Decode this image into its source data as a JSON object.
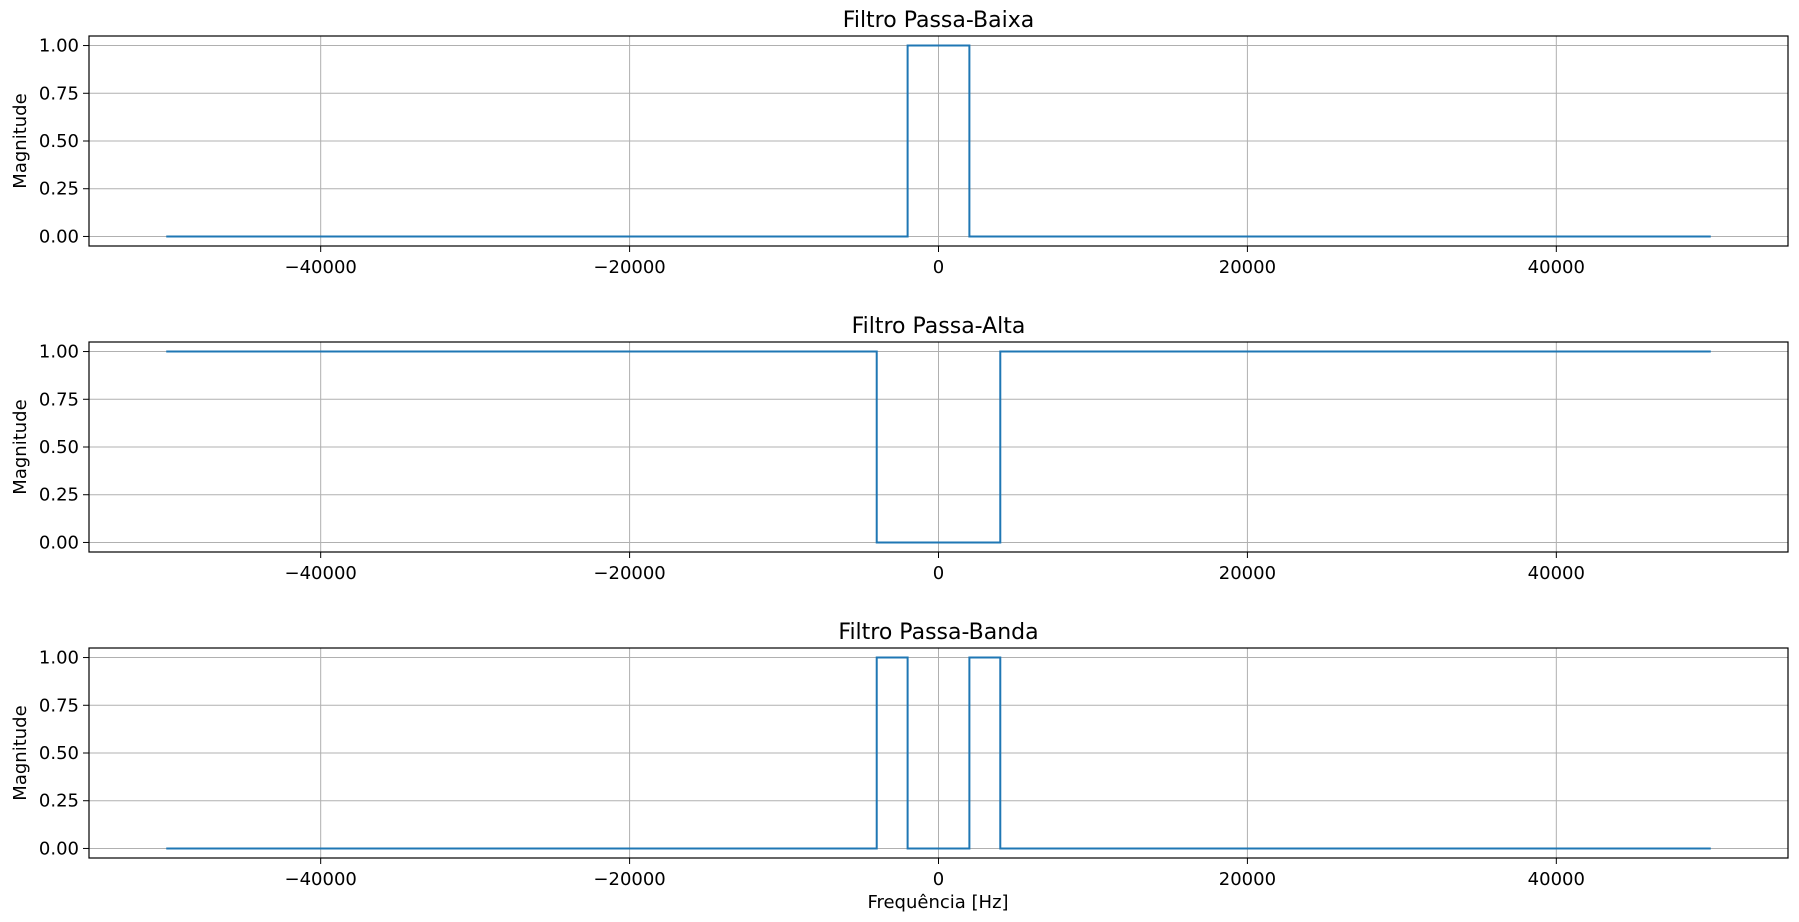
{
  "colors": {
    "line": "#1f77b4",
    "grid": "#b0b0b0",
    "axes": "#000000",
    "background": "#ffffff"
  },
  "xlabel": "Frequência [Hz]",
  "chart_data": [
    {
      "type": "line",
      "title": "Filtro Passa-Baixa",
      "xlabel": "",
      "ylabel": "Magnitude",
      "xlim": [
        -55000,
        55000
      ],
      "ylim": [
        -0.05,
        1.05
      ],
      "grid": true,
      "step": true,
      "xticks": [
        -40000,
        -20000,
        0,
        20000,
        40000
      ],
      "xtick_labels": [
        "−40000",
        "−20000",
        "0",
        "20000",
        "40000"
      ],
      "yticks": [
        0,
        0.25,
        0.5,
        0.75,
        1.0
      ],
      "ytick_labels": [
        "0.00",
        "0.25",
        "0.50",
        "0.75",
        "1.00"
      ],
      "x": [
        -50000,
        -2000,
        -2000,
        2000,
        2000,
        50000
      ],
      "y": [
        0,
        0,
        1,
        1,
        0,
        0
      ]
    },
    {
      "type": "line",
      "title": "Filtro Passa-Alta",
      "xlabel": "",
      "ylabel": "Magnitude",
      "xlim": [
        -55000,
        55000
      ],
      "ylim": [
        -0.05,
        1.05
      ],
      "grid": true,
      "step": true,
      "xticks": [
        -40000,
        -20000,
        0,
        20000,
        40000
      ],
      "xtick_labels": [
        "−40000",
        "−20000",
        "0",
        "20000",
        "40000"
      ],
      "yticks": [
        0,
        0.25,
        0.5,
        0.75,
        1.0
      ],
      "ytick_labels": [
        "0.00",
        "0.25",
        "0.50",
        "0.75",
        "1.00"
      ],
      "x": [
        -50000,
        -4000,
        -4000,
        4000,
        4000,
        50000
      ],
      "y": [
        1,
        1,
        0,
        0,
        1,
        1
      ]
    },
    {
      "type": "line",
      "title": "Filtro Passa-Banda",
      "xlabel": "Frequência [Hz]",
      "ylabel": "Magnitude",
      "xlim": [
        -55000,
        55000
      ],
      "ylim": [
        -0.05,
        1.05
      ],
      "grid": true,
      "step": true,
      "xticks": [
        -40000,
        -20000,
        0,
        20000,
        40000
      ],
      "xtick_labels": [
        "−40000",
        "−20000",
        "0",
        "20000",
        "40000"
      ],
      "yticks": [
        0,
        0.25,
        0.5,
        0.75,
        1.0
      ],
      "ytick_labels": [
        "0.00",
        "0.25",
        "0.50",
        "0.75",
        "1.00"
      ],
      "x": [
        -50000,
        -4000,
        -4000,
        -2000,
        -2000,
        2000,
        2000,
        4000,
        4000,
        50000
      ],
      "y": [
        0,
        0,
        1,
        1,
        0,
        0,
        1,
        1,
        0,
        0
      ]
    }
  ]
}
